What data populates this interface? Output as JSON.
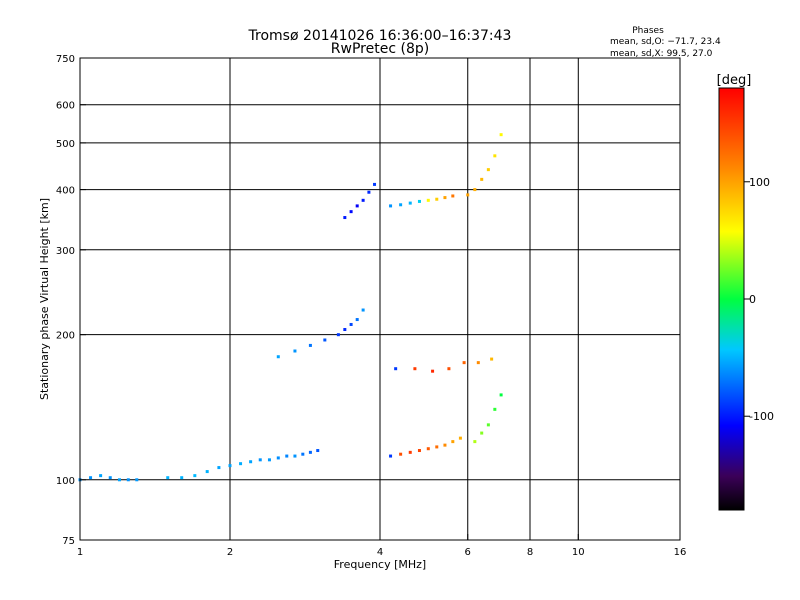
{
  "chart_data": {
    "type": "scatter",
    "title": "Tromsø 20141026 16:36:00–16:37:43",
    "subtitle": "RwPretec (8p)",
    "xlabel": "Frequency [MHz]",
    "ylabel": "Stationary phase Virtual Height [km]",
    "x_scale": "log",
    "y_scale": "log",
    "xlim": [
      1,
      16
    ],
    "ylim": [
      75,
      750
    ],
    "x_ticks": [
      1,
      2,
      4,
      6,
      8,
      10,
      16
    ],
    "y_ticks": [
      75,
      100,
      200,
      300,
      400,
      500,
      600,
      750
    ],
    "x_gridlines": [
      2,
      4,
      6,
      8,
      10
    ],
    "y_gridlines": [
      100,
      200,
      300,
      400,
      500,
      600
    ],
    "grid": true,
    "stats": {
      "heading": "Phases",
      "line1": "mean, sd,O: −71.7, 23.4",
      "line2": "mean, sd,X:  99.5, 27.0"
    },
    "colorbar": {
      "label": "[deg]",
      "range": [
        -180,
        180
      ],
      "ticks": [
        100,
        0,
        -100
      ],
      "colormap": "jet"
    },
    "series": [
      {
        "x": [
          1.0,
          1.05,
          1.1,
          1.15,
          1.2,
          1.25,
          1.3,
          1.5,
          1.6,
          1.7,
          1.8,
          1.9,
          2.0,
          2.1,
          2.2,
          2.3,
          2.4,
          2.5,
          2.6,
          2.7,
          2.8,
          2.9,
          3.0
        ],
        "y": [
          100,
          101,
          102,
          101,
          100,
          100,
          100,
          101,
          101,
          102,
          104,
          106,
          107,
          108,
          109,
          110,
          110,
          111,
          112,
          112,
          113,
          114,
          115
        ],
        "phase": [
          -60,
          -60,
          -55,
          -60,
          -55,
          -60,
          -58,
          -50,
          -50,
          -48,
          -50,
          -55,
          -55,
          -52,
          -55,
          -60,
          -58,
          -62,
          -65,
          -60,
          -70,
          -75,
          -80
        ]
      },
      {
        "x": [
          2.5,
          2.7,
          2.9,
          3.1,
          3.3,
          3.4,
          3.5,
          3.6,
          3.7
        ],
        "y": [
          180,
          185,
          190,
          195,
          200,
          205,
          210,
          215,
          225
        ],
        "phase": [
          -55,
          -60,
          -70,
          -80,
          -90,
          -95,
          -85,
          -70,
          -60
        ]
      },
      {
        "x": [
          3.4,
          3.5,
          3.6,
          3.7,
          3.8,
          3.9
        ],
        "y": [
          350,
          360,
          370,
          380,
          395,
          410
        ],
        "phase": [
          -100,
          -105,
          -110,
          -100,
          -95,
          -90
        ]
      },
      {
        "x": [
          4.2,
          4.4,
          4.6,
          4.8,
          5.0,
          5.2,
          5.4,
          5.6
        ],
        "y": [
          370,
          372,
          375,
          378,
          380,
          382,
          385,
          388
        ],
        "phase": [
          -60,
          -55,
          -50,
          -40,
          60,
          80,
          100,
          120
        ]
      },
      {
        "x": [
          4.2,
          4.4,
          4.6,
          4.8,
          5.0,
          5.2,
          5.4,
          5.6,
          5.8
        ],
        "y": [
          112,
          113,
          114,
          115,
          116,
          117,
          118,
          120,
          122
        ],
        "phase": [
          -90,
          140,
          150,
          145,
          135,
          125,
          110,
          100,
          95
        ]
      },
      {
        "x": [
          4.3,
          4.7,
          5.1,
          5.5,
          5.9,
          6.3,
          6.7
        ],
        "y": [
          170,
          170,
          168,
          170,
          175,
          175,
          178
        ],
        "phase": [
          -90,
          150,
          160,
          140,
          130,
          110,
          90
        ]
      },
      {
        "x": [
          6.0,
          6.2,
          6.4,
          6.6,
          6.8,
          7.0
        ],
        "y": [
          390,
          400,
          420,
          440,
          470,
          520
        ],
        "phase": [
          100,
          95,
          90,
          80,
          70,
          60
        ]
      },
      {
        "x": [
          6.2,
          6.4,
          6.6,
          6.8,
          7.0
        ],
        "y": [
          120,
          125,
          130,
          140,
          150
        ],
        "phase": [
          40,
          30,
          20,
          10,
          0
        ]
      }
    ]
  }
}
